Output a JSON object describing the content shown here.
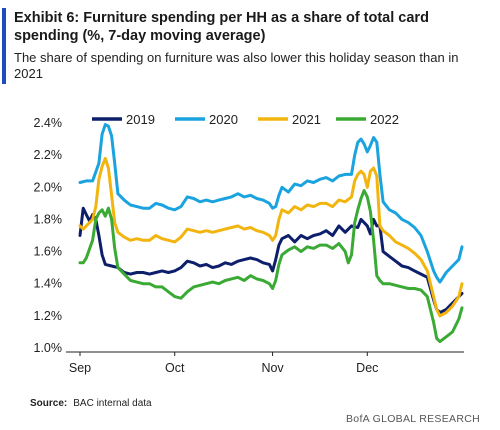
{
  "header": {
    "title": "Exhibit 6: Furniture spending per HH as a share of total card spending (%, 7-day moving average)",
    "subtitle_line1": "The share of spending on furniture was also lower this holiday season than in",
    "subtitle_line2": "2021",
    "accent_color": "#1f4bbf"
  },
  "footer": {
    "source_label": "Source:",
    "source_text": "BAC internal data",
    "brand": "BofA GLOBAL RESEARCH"
  },
  "chart_data": {
    "type": "line",
    "title": "Exhibit 6: Furniture spending per HH as a share of total card spending (%, 7-day moving average)",
    "xlabel": "",
    "ylabel": "",
    "ylim": [
      1.0,
      2.4
    ],
    "y_ticks": [
      "1.0%",
      "1.2%",
      "1.4%",
      "1.6%",
      "1.8%",
      "2.0%",
      "2.2%",
      "2.4%"
    ],
    "x_ticks": [
      {
        "label": "Sep",
        "day": 0
      },
      {
        "label": "Oct",
        "day": 30
      },
      {
        "label": "Nov",
        "day": 61
      },
      {
        "label": "Dec",
        "day": 91
      }
    ],
    "x_range": [
      0,
      121
    ],
    "grid": false,
    "legend_position": "top",
    "series": [
      {
        "name": "2019",
        "color": "#0d1f6b",
        "points": [
          [
            0,
            1.7
          ],
          [
            1,
            1.87
          ],
          [
            2,
            1.83
          ],
          [
            3,
            1.79
          ],
          [
            4,
            1.83
          ],
          [
            5,
            1.8
          ],
          [
            6,
            1.7
          ],
          [
            7,
            1.58
          ],
          [
            8,
            1.52
          ],
          [
            10,
            1.51
          ],
          [
            12,
            1.5
          ],
          [
            14,
            1.47
          ],
          [
            16,
            1.46
          ],
          [
            18,
            1.47
          ],
          [
            20,
            1.47
          ],
          [
            22,
            1.46
          ],
          [
            24,
            1.47
          ],
          [
            26,
            1.48
          ],
          [
            28,
            1.47
          ],
          [
            30,
            1.48
          ],
          [
            32,
            1.5
          ],
          [
            34,
            1.54
          ],
          [
            36,
            1.53
          ],
          [
            38,
            1.51
          ],
          [
            40,
            1.52
          ],
          [
            42,
            1.5
          ],
          [
            44,
            1.51
          ],
          [
            46,
            1.53
          ],
          [
            48,
            1.52
          ],
          [
            50,
            1.54
          ],
          [
            52,
            1.55
          ],
          [
            54,
            1.56
          ],
          [
            56,
            1.55
          ],
          [
            58,
            1.53
          ],
          [
            60,
            1.52
          ],
          [
            61,
            1.48
          ],
          [
            62,
            1.55
          ],
          [
            63,
            1.64
          ],
          [
            64,
            1.68
          ],
          [
            66,
            1.7
          ],
          [
            68,
            1.66
          ],
          [
            70,
            1.7
          ],
          [
            72,
            1.68
          ],
          [
            74,
            1.7
          ],
          [
            76,
            1.71
          ],
          [
            78,
            1.73
          ],
          [
            80,
            1.7
          ],
          [
            82,
            1.76
          ],
          [
            84,
            1.72
          ],
          [
            86,
            1.76
          ],
          [
            88,
            1.75
          ],
          [
            89,
            1.8
          ],
          [
            90,
            1.78
          ],
          [
            91,
            1.76
          ],
          [
            92,
            1.71
          ],
          [
            93,
            1.8
          ],
          [
            94,
            1.76
          ],
          [
            95,
            1.76
          ],
          [
            96,
            1.6
          ],
          [
            98,
            1.57
          ],
          [
            100,
            1.54
          ],
          [
            102,
            1.51
          ],
          [
            104,
            1.5
          ],
          [
            106,
            1.48
          ],
          [
            108,
            1.46
          ],
          [
            110,
            1.44
          ],
          [
            112,
            1.3
          ],
          [
            113,
            1.24
          ],
          [
            114,
            1.22
          ],
          [
            116,
            1.24
          ],
          [
            118,
            1.28
          ],
          [
            119,
            1.3
          ],
          [
            121,
            1.34
          ]
        ]
      },
      {
        "name": "2020",
        "color": "#1aa3df",
        "points": [
          [
            0,
            2.03
          ],
          [
            2,
            2.04
          ],
          [
            4,
            2.04
          ],
          [
            6,
            2.15
          ],
          [
            7,
            2.33
          ],
          [
            8,
            2.39
          ],
          [
            9,
            2.38
          ],
          [
            10,
            2.32
          ],
          [
            11,
            2.15
          ],
          [
            12,
            1.96
          ],
          [
            14,
            1.92
          ],
          [
            16,
            1.89
          ],
          [
            18,
            1.88
          ],
          [
            20,
            1.87
          ],
          [
            22,
            1.87
          ],
          [
            24,
            1.9
          ],
          [
            26,
            1.89
          ],
          [
            28,
            1.87
          ],
          [
            30,
            1.86
          ],
          [
            32,
            1.88
          ],
          [
            34,
            1.94
          ],
          [
            36,
            1.93
          ],
          [
            38,
            1.91
          ],
          [
            40,
            1.92
          ],
          [
            42,
            1.91
          ],
          [
            44,
            1.92
          ],
          [
            46,
            1.93
          ],
          [
            48,
            1.94
          ],
          [
            50,
            1.96
          ],
          [
            52,
            1.94
          ],
          [
            54,
            1.95
          ],
          [
            56,
            1.93
          ],
          [
            58,
            1.92
          ],
          [
            60,
            1.9
          ],
          [
            61,
            1.87
          ],
          [
            62,
            1.88
          ],
          [
            63,
            1.95
          ],
          [
            64,
            2.0
          ],
          [
            66,
            1.97
          ],
          [
            68,
            2.02
          ],
          [
            70,
            2.01
          ],
          [
            72,
            2.04
          ],
          [
            74,
            2.03
          ],
          [
            76,
            2.05
          ],
          [
            78,
            2.06
          ],
          [
            80,
            2.04
          ],
          [
            82,
            2.07
          ],
          [
            84,
            2.08
          ],
          [
            86,
            2.08
          ],
          [
            87,
            2.2
          ],
          [
            88,
            2.28
          ],
          [
            89,
            2.3
          ],
          [
            90,
            2.27
          ],
          [
            91,
            2.22
          ],
          [
            92,
            2.26
          ],
          [
            93,
            2.31
          ],
          [
            94,
            2.28
          ],
          [
            95,
            2.08
          ],
          [
            96,
            1.91
          ],
          [
            98,
            1.86
          ],
          [
            100,
            1.84
          ],
          [
            102,
            1.8
          ],
          [
            104,
            1.78
          ],
          [
            106,
            1.75
          ],
          [
            108,
            1.7
          ],
          [
            110,
            1.6
          ],
          [
            112,
            1.48
          ],
          [
            113,
            1.44
          ],
          [
            114,
            1.41
          ],
          [
            115,
            1.44
          ],
          [
            116,
            1.47
          ],
          [
            118,
            1.51
          ],
          [
            120,
            1.55
          ],
          [
            121,
            1.63
          ]
        ]
      },
      {
        "name": "2021",
        "color": "#f2b50f",
        "points": [
          [
            0,
            1.76
          ],
          [
            1,
            1.74
          ],
          [
            2,
            1.76
          ],
          [
            4,
            1.8
          ],
          [
            5,
            1.88
          ],
          [
            6,
            2.05
          ],
          [
            7,
            2.13
          ],
          [
            8,
            2.18
          ],
          [
            9,
            2.12
          ],
          [
            10,
            1.95
          ],
          [
            11,
            1.78
          ],
          [
            12,
            1.72
          ],
          [
            14,
            1.69
          ],
          [
            16,
            1.67
          ],
          [
            18,
            1.68
          ],
          [
            20,
            1.67
          ],
          [
            22,
            1.67
          ],
          [
            24,
            1.7
          ],
          [
            26,
            1.68
          ],
          [
            28,
            1.67
          ],
          [
            30,
            1.66
          ],
          [
            32,
            1.69
          ],
          [
            34,
            1.74
          ],
          [
            36,
            1.73
          ],
          [
            38,
            1.72
          ],
          [
            40,
            1.73
          ],
          [
            42,
            1.72
          ],
          [
            44,
            1.73
          ],
          [
            46,
            1.74
          ],
          [
            48,
            1.75
          ],
          [
            50,
            1.76
          ],
          [
            52,
            1.74
          ],
          [
            54,
            1.75
          ],
          [
            56,
            1.73
          ],
          [
            58,
            1.72
          ],
          [
            60,
            1.7
          ],
          [
            61,
            1.67
          ],
          [
            62,
            1.7
          ],
          [
            63,
            1.8
          ],
          [
            64,
            1.86
          ],
          [
            66,
            1.84
          ],
          [
            68,
            1.88
          ],
          [
            70,
            1.86
          ],
          [
            72,
            1.89
          ],
          [
            74,
            1.88
          ],
          [
            76,
            1.9
          ],
          [
            78,
            1.9
          ],
          [
            80,
            1.88
          ],
          [
            82,
            1.92
          ],
          [
            84,
            1.91
          ],
          [
            86,
            1.94
          ],
          [
            87,
            2.04
          ],
          [
            88,
            2.08
          ],
          [
            89,
            2.1
          ],
          [
            90,
            2.08
          ],
          [
            91,
            2.0
          ],
          [
            92,
            2.1
          ],
          [
            93,
            2.12
          ],
          [
            94,
            2.07
          ],
          [
            95,
            1.76
          ],
          [
            96,
            1.73
          ],
          [
            98,
            1.7
          ],
          [
            100,
            1.66
          ],
          [
            102,
            1.64
          ],
          [
            104,
            1.62
          ],
          [
            106,
            1.59
          ],
          [
            108,
            1.55
          ],
          [
            110,
            1.48
          ],
          [
            112,
            1.32
          ],
          [
            113,
            1.24
          ],
          [
            114,
            1.2
          ],
          [
            116,
            1.22
          ],
          [
            118,
            1.26
          ],
          [
            120,
            1.32
          ],
          [
            121,
            1.4
          ]
        ]
      },
      {
        "name": "2022",
        "color": "#3aaa35",
        "points": [
          [
            0,
            1.53
          ],
          [
            1,
            1.53
          ],
          [
            2,
            1.56
          ],
          [
            4,
            1.67
          ],
          [
            5,
            1.8
          ],
          [
            6,
            1.84
          ],
          [
            7,
            1.86
          ],
          [
            8,
            1.82
          ],
          [
            9,
            1.87
          ],
          [
            10,
            1.8
          ],
          [
            11,
            1.62
          ],
          [
            12,
            1.5
          ],
          [
            14,
            1.46
          ],
          [
            16,
            1.42
          ],
          [
            18,
            1.41
          ],
          [
            20,
            1.4
          ],
          [
            22,
            1.4
          ],
          [
            24,
            1.38
          ],
          [
            26,
            1.38
          ],
          [
            28,
            1.35
          ],
          [
            30,
            1.32
          ],
          [
            32,
            1.31
          ],
          [
            34,
            1.35
          ],
          [
            36,
            1.38
          ],
          [
            38,
            1.39
          ],
          [
            40,
            1.4
          ],
          [
            42,
            1.41
          ],
          [
            44,
            1.4
          ],
          [
            46,
            1.42
          ],
          [
            48,
            1.43
          ],
          [
            50,
            1.44
          ],
          [
            52,
            1.42
          ],
          [
            54,
            1.45
          ],
          [
            56,
            1.43
          ],
          [
            58,
            1.42
          ],
          [
            60,
            1.4
          ],
          [
            61,
            1.37
          ],
          [
            62,
            1.42
          ],
          [
            63,
            1.52
          ],
          [
            64,
            1.58
          ],
          [
            66,
            1.61
          ],
          [
            68,
            1.63
          ],
          [
            70,
            1.6
          ],
          [
            72,
            1.63
          ],
          [
            74,
            1.62
          ],
          [
            76,
            1.64
          ],
          [
            78,
            1.64
          ],
          [
            80,
            1.62
          ],
          [
            82,
            1.65
          ],
          [
            84,
            1.6
          ],
          [
            85,
            1.53
          ],
          [
            86,
            1.58
          ],
          [
            87,
            1.78
          ],
          [
            88,
            1.86
          ],
          [
            89,
            1.93
          ],
          [
            90,
            1.98
          ],
          [
            91,
            1.94
          ],
          [
            92,
            1.85
          ],
          [
            93,
            1.67
          ],
          [
            94,
            1.45
          ],
          [
            95,
            1.42
          ],
          [
            96,
            1.4
          ],
          [
            98,
            1.4
          ],
          [
            100,
            1.39
          ],
          [
            102,
            1.38
          ],
          [
            104,
            1.37
          ],
          [
            106,
            1.37
          ],
          [
            108,
            1.36
          ],
          [
            110,
            1.32
          ],
          [
            112,
            1.16
          ],
          [
            113,
            1.06
          ],
          [
            114,
            1.04
          ],
          [
            116,
            1.07
          ],
          [
            118,
            1.1
          ],
          [
            120,
            1.18
          ],
          [
            121,
            1.25
          ]
        ]
      }
    ]
  }
}
